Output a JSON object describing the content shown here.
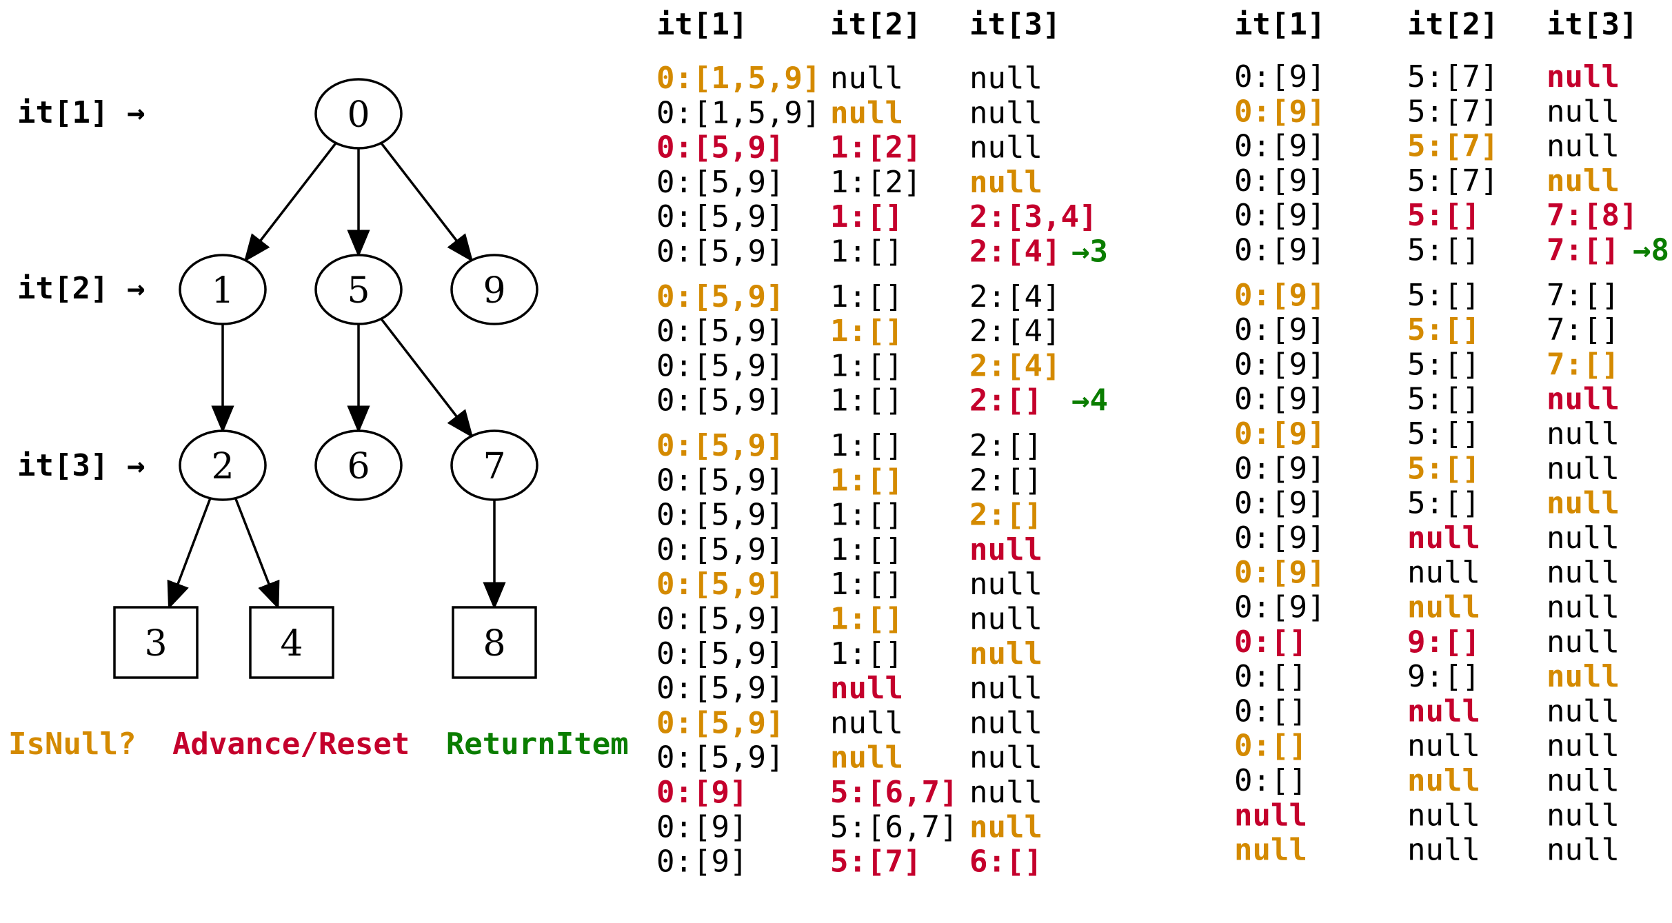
{
  "colors": {
    "normal": "#000000",
    "isnull": "#d48a00",
    "advance": "#c4002c",
    "ret": "#0a7d00"
  },
  "iterator_labels": [
    "it[1] →",
    "it[2] →",
    "it[3] →"
  ],
  "tree": {
    "nodes": [
      {
        "id": "0",
        "shape": "ellipse"
      },
      {
        "id": "1",
        "shape": "ellipse"
      },
      {
        "id": "5",
        "shape": "ellipse"
      },
      {
        "id": "9",
        "shape": "ellipse"
      },
      {
        "id": "2",
        "shape": "ellipse"
      },
      {
        "id": "6",
        "shape": "ellipse"
      },
      {
        "id": "7",
        "shape": "ellipse"
      },
      {
        "id": "3",
        "shape": "box"
      },
      {
        "id": "4",
        "shape": "box"
      },
      {
        "id": "8",
        "shape": "box"
      }
    ],
    "edges": [
      [
        "0",
        "1"
      ],
      [
        "0",
        "5"
      ],
      [
        "0",
        "9"
      ],
      [
        "1",
        "2"
      ],
      [
        "5",
        "6"
      ],
      [
        "5",
        "7"
      ],
      [
        "2",
        "3"
      ],
      [
        "2",
        "4"
      ],
      [
        "7",
        "8"
      ]
    ]
  },
  "legend": [
    {
      "label": "IsNull?",
      "style": "isnull"
    },
    {
      "label": "Advance/Reset",
      "style": "advance"
    },
    {
      "label": "ReturnItem",
      "style": "ret"
    }
  ],
  "table_left": {
    "headers": [
      "it[1]",
      "it[2]",
      "it[3]"
    ],
    "groups": [
      [
        [
          [
            "0:[1,5,9]",
            "isnull"
          ],
          [
            "null",
            "normal"
          ],
          [
            "null",
            "normal"
          ]
        ],
        [
          [
            "0:[1,5,9]",
            "normal"
          ],
          [
            "null",
            "isnull"
          ],
          [
            "null",
            "normal"
          ]
        ],
        [
          [
            "0:[5,9]",
            "advance"
          ],
          [
            "1:[2]",
            "advance"
          ],
          [
            "null",
            "normal"
          ]
        ],
        [
          [
            "0:[5,9]",
            "normal"
          ],
          [
            "1:[2]",
            "normal"
          ],
          [
            "null",
            "isnull"
          ]
        ],
        [
          [
            "0:[5,9]",
            "normal"
          ],
          [
            "1:[]",
            "advance"
          ],
          [
            "2:[3,4]",
            "advance"
          ]
        ],
        [
          [
            "0:[5,9]",
            "normal"
          ],
          [
            "1:[]",
            "normal"
          ],
          [
            "2:[4]",
            "advance"
          ],
          [
            "→3",
            "ret"
          ]
        ]
      ],
      [
        [
          [
            "0:[5,9]",
            "isnull"
          ],
          [
            "1:[]",
            "normal"
          ],
          [
            "2:[4]",
            "normal"
          ]
        ],
        [
          [
            "0:[5,9]",
            "normal"
          ],
          [
            "1:[]",
            "isnull"
          ],
          [
            "2:[4]",
            "normal"
          ]
        ],
        [
          [
            "0:[5,9]",
            "normal"
          ],
          [
            "1:[]",
            "normal"
          ],
          [
            "2:[4]",
            "isnull"
          ]
        ],
        [
          [
            "0:[5,9]",
            "normal"
          ],
          [
            "1:[]",
            "normal"
          ],
          [
            "2:[]",
            "advance"
          ],
          [
            "→4",
            "ret"
          ]
        ]
      ],
      [
        [
          [
            "0:[5,9]",
            "isnull"
          ],
          [
            "1:[]",
            "normal"
          ],
          [
            "2:[]",
            "normal"
          ]
        ],
        [
          [
            "0:[5,9]",
            "normal"
          ],
          [
            "1:[]",
            "isnull"
          ],
          [
            "2:[]",
            "normal"
          ]
        ],
        [
          [
            "0:[5,9]",
            "normal"
          ],
          [
            "1:[]",
            "normal"
          ],
          [
            "2:[]",
            "isnull"
          ]
        ],
        [
          [
            "0:[5,9]",
            "normal"
          ],
          [
            "1:[]",
            "normal"
          ],
          [
            "null",
            "advance"
          ]
        ],
        [
          [
            "0:[5,9]",
            "isnull"
          ],
          [
            "1:[]",
            "normal"
          ],
          [
            "null",
            "normal"
          ]
        ],
        [
          [
            "0:[5,9]",
            "normal"
          ],
          [
            "1:[]",
            "isnull"
          ],
          [
            "null",
            "normal"
          ]
        ],
        [
          [
            "0:[5,9]",
            "normal"
          ],
          [
            "1:[]",
            "normal"
          ],
          [
            "null",
            "isnull"
          ]
        ],
        [
          [
            "0:[5,9]",
            "normal"
          ],
          [
            "null",
            "advance"
          ],
          [
            "null",
            "normal"
          ]
        ],
        [
          [
            "0:[5,9]",
            "isnull"
          ],
          [
            "null",
            "normal"
          ],
          [
            "null",
            "normal"
          ]
        ],
        [
          [
            "0:[5,9]",
            "normal"
          ],
          [
            "null",
            "isnull"
          ],
          [
            "null",
            "normal"
          ]
        ],
        [
          [
            "0:[9]",
            "advance"
          ],
          [
            "5:[6,7]",
            "advance"
          ],
          [
            "null",
            "normal"
          ]
        ],
        [
          [
            "0:[9]",
            "normal"
          ],
          [
            "5:[6,7]",
            "normal"
          ],
          [
            "null",
            "isnull"
          ]
        ],
        [
          [
            "0:[9]",
            "normal"
          ],
          [
            "5:[7]",
            "advance"
          ],
          [
            "6:[]",
            "advance"
          ]
        ]
      ]
    ]
  },
  "table_right": {
    "headers": [
      "it[1]",
      "it[2]",
      "it[3]"
    ],
    "groups": [
      [
        [
          [
            "0:[9]",
            "normal"
          ],
          [
            "5:[7]",
            "normal"
          ],
          [
            "null",
            "advance"
          ]
        ],
        [
          [
            "0:[9]",
            "isnull"
          ],
          [
            "5:[7]",
            "normal"
          ],
          [
            "null",
            "normal"
          ]
        ],
        [
          [
            "0:[9]",
            "normal"
          ],
          [
            "5:[7]",
            "isnull"
          ],
          [
            "null",
            "normal"
          ]
        ],
        [
          [
            "0:[9]",
            "normal"
          ],
          [
            "5:[7]",
            "normal"
          ],
          [
            "null",
            "isnull"
          ]
        ],
        [
          [
            "0:[9]",
            "normal"
          ],
          [
            "5:[]",
            "advance"
          ],
          [
            "7:[8]",
            "advance"
          ]
        ],
        [
          [
            "0:[9]",
            "normal"
          ],
          [
            "5:[]",
            "normal"
          ],
          [
            "7:[]",
            "advance"
          ],
          [
            "→8",
            "ret"
          ]
        ]
      ],
      [
        [
          [
            "0:[9]",
            "isnull"
          ],
          [
            "5:[]",
            "normal"
          ],
          [
            "7:[]",
            "normal"
          ]
        ],
        [
          [
            "0:[9]",
            "normal"
          ],
          [
            "5:[]",
            "isnull"
          ],
          [
            "7:[]",
            "normal"
          ]
        ],
        [
          [
            "0:[9]",
            "normal"
          ],
          [
            "5:[]",
            "normal"
          ],
          [
            "7:[]",
            "isnull"
          ]
        ],
        [
          [
            "0:[9]",
            "normal"
          ],
          [
            "5:[]",
            "normal"
          ],
          [
            "null",
            "advance"
          ]
        ],
        [
          [
            "0:[9]",
            "isnull"
          ],
          [
            "5:[]",
            "normal"
          ],
          [
            "null",
            "normal"
          ]
        ],
        [
          [
            "0:[9]",
            "normal"
          ],
          [
            "5:[]",
            "isnull"
          ],
          [
            "null",
            "normal"
          ]
        ],
        [
          [
            "0:[9]",
            "normal"
          ],
          [
            "5:[]",
            "normal"
          ],
          [
            "null",
            "isnull"
          ]
        ],
        [
          [
            "0:[9]",
            "normal"
          ],
          [
            "null",
            "advance"
          ],
          [
            "null",
            "normal"
          ]
        ],
        [
          [
            "0:[9]",
            "isnull"
          ],
          [
            "null",
            "normal"
          ],
          [
            "null",
            "normal"
          ]
        ],
        [
          [
            "0:[9]",
            "normal"
          ],
          [
            "null",
            "isnull"
          ],
          [
            "null",
            "normal"
          ]
        ],
        [
          [
            "0:[]",
            "advance"
          ],
          [
            "9:[]",
            "advance"
          ],
          [
            "null",
            "normal"
          ]
        ],
        [
          [
            "0:[]",
            "normal"
          ],
          [
            "9:[]",
            "normal"
          ],
          [
            "null",
            "isnull"
          ]
        ],
        [
          [
            "0:[]",
            "normal"
          ],
          [
            "null",
            "advance"
          ],
          [
            "null",
            "normal"
          ]
        ],
        [
          [
            "0:[]",
            "isnull"
          ],
          [
            "null",
            "normal"
          ],
          [
            "null",
            "normal"
          ]
        ],
        [
          [
            "0:[]",
            "normal"
          ],
          [
            "null",
            "isnull"
          ],
          [
            "null",
            "normal"
          ]
        ],
        [
          [
            "null",
            "advance"
          ],
          [
            "null",
            "normal"
          ],
          [
            "null",
            "normal"
          ]
        ],
        [
          [
            "null",
            "isnull"
          ],
          [
            "null",
            "normal"
          ],
          [
            "null",
            "normal"
          ]
        ]
      ]
    ]
  }
}
